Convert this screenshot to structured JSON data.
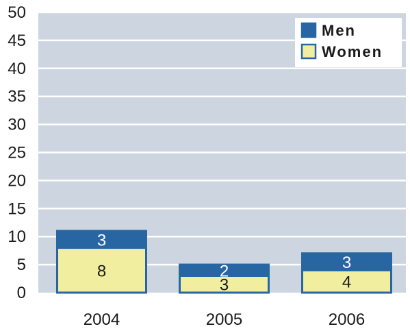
{
  "chart_data": {
    "type": "bar",
    "stacked": true,
    "categories": [
      "2004",
      "2005",
      "2006"
    ],
    "series": [
      {
        "name": "Women",
        "values": [
          8,
          3,
          4
        ],
        "color": "#f2eea0"
      },
      {
        "name": "Men",
        "values": [
          3,
          2,
          3
        ],
        "color": "#2866a3"
      }
    ],
    "yticks": [
      "0",
      "5",
      "10",
      "15",
      "20",
      "25",
      "30",
      "35",
      "40",
      "45",
      "50"
    ],
    "ylim": [
      0,
      50
    ],
    "grid": true,
    "legend_position": "top-right",
    "legend_order": [
      "Men",
      "Women"
    ],
    "plot_background": "#cdd6e0",
    "bar_outline": "#2866a3"
  }
}
